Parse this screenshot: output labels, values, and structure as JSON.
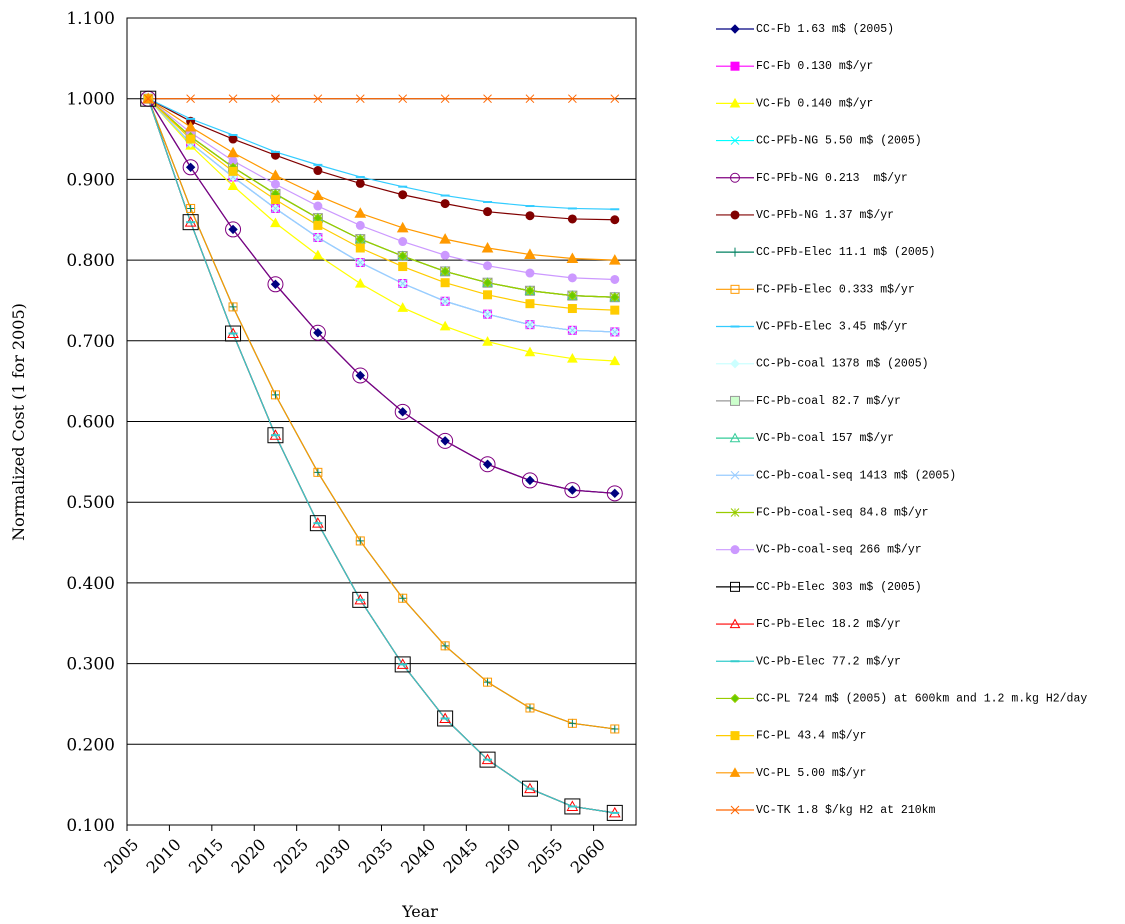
{
  "chart_data": {
    "type": "line",
    "x_label": "Year",
    "y_label": "Normalized Cost (1 for 2005)",
    "x": [
      2007.5,
      2012.5,
      2017.5,
      2022.5,
      2027.5,
      2032.5,
      2037.5,
      2042.5,
      2047.5,
      2052.5,
      2057.5,
      2062.5
    ],
    "xlim": [
      2005,
      2065
    ],
    "xticks": [
      2005,
      2010,
      2015,
      2020,
      2025,
      2030,
      2035,
      2040,
      2045,
      2050,
      2055,
      2060
    ],
    "ylim": [
      0.1,
      1.1
    ],
    "yticks": [
      {
        "value": 0.1,
        "label": "0.100"
      },
      {
        "value": 0.2,
        "label": "0.200"
      },
      {
        "value": 0.3,
        "label": "0.300"
      },
      {
        "value": 0.4,
        "label": "0.400"
      },
      {
        "value": 0.5,
        "label": "0.500"
      },
      {
        "value": 0.6,
        "label": "0.600"
      },
      {
        "value": 0.7,
        "label": "0.700"
      },
      {
        "value": 0.8,
        "label": "0.800"
      },
      {
        "value": 0.9,
        "label": "0.900"
      },
      {
        "value": 1.0,
        "label": "1.000"
      },
      {
        "value": 1.1,
        "label": "1.100"
      }
    ],
    "grid": true,
    "legend": "right",
    "series": [
      {
        "name": "CC-Fb 1.63 m$ (2005)",
        "color": "#000080",
        "marker": "diamond",
        "filled": true,
        "marker_size": 8,
        "values": [
          1.0,
          0.915,
          0.838,
          0.77,
          0.71,
          0.657,
          0.612,
          0.576,
          0.547,
          0.527,
          0.515,
          0.511
        ]
      },
      {
        "name": "FC-Fb 0.130 m$/yr",
        "color": "#ff00ff",
        "marker": "square",
        "filled": true,
        "marker_size": 8,
        "values": [
          1.0,
          0.945,
          0.903,
          0.864,
          0.828,
          0.797,
          0.771,
          0.749,
          0.733,
          0.72,
          0.713,
          0.711
        ]
      },
      {
        "name": "VC-Fb 0.140 m$/yr",
        "color": "#ffff00",
        "marker": "triangle",
        "filled": true,
        "marker_size": 9,
        "values": [
          1.0,
          0.942,
          0.892,
          0.846,
          0.806,
          0.771,
          0.741,
          0.718,
          0.699,
          0.686,
          0.678,
          0.675
        ]
      },
      {
        "name": "CC-PFb-NG 5.50 m$ (2005)",
        "color": "#00ffff",
        "marker": "x",
        "filled": false,
        "marker_size": 8,
        "values": [
          1.0,
          0.945,
          0.903,
          0.864,
          0.828,
          0.797,
          0.771,
          0.749,
          0.733,
          0.72,
          0.713,
          0.711
        ]
      },
      {
        "name": "FC-PFb-NG 0.213  m$/yr",
        "color": "#800080",
        "marker": "circle",
        "filled": false,
        "marker_size": 15,
        "values": [
          1.0,
          0.915,
          0.838,
          0.77,
          0.71,
          0.657,
          0.612,
          0.576,
          0.547,
          0.527,
          0.515,
          0.511
        ]
      },
      {
        "name": "VC-PFb-NG 1.37 m$/yr",
        "color": "#800000",
        "marker": "dot",
        "filled": true,
        "marker_size": 8,
        "values": [
          1.0,
          0.972,
          0.95,
          0.93,
          0.911,
          0.895,
          0.881,
          0.87,
          0.86,
          0.855,
          0.851,
          0.85
        ]
      },
      {
        "name": "CC-PFb-Elec 11.1 m$ (2005)",
        "color": "#008060",
        "marker": "plus",
        "filled": false,
        "marker_size": 9,
        "values": [
          1.0,
          0.864,
          0.742,
          0.633,
          0.537,
          0.452,
          0.381,
          0.322,
          0.277,
          0.245,
          0.226,
          0.219
        ]
      },
      {
        "name": "FC-PFb-Elec 0.333 m$/yr",
        "color": "#ff9900",
        "marker": "square",
        "filled": false,
        "marker_size": 8,
        "values": [
          1.0,
          0.864,
          0.742,
          0.633,
          0.537,
          0.452,
          0.381,
          0.322,
          0.277,
          0.245,
          0.226,
          0.219
        ]
      },
      {
        "name": "VC-PFb-Elec 3.45 m$/yr",
        "color": "#33ccff",
        "marker": "dash",
        "filled": false,
        "marker_size": 9,
        "values": [
          1.0,
          0.975,
          0.955,
          0.934,
          0.918,
          0.903,
          0.891,
          0.88,
          0.872,
          0.867,
          0.864,
          0.863
        ]
      },
      {
        "name": "CC-Pb-coal 1378 m$ (2005)",
        "color": "#ccffff",
        "marker": "diamond",
        "filled": true,
        "marker_size": 8,
        "values": [
          1.0,
          0.945,
          0.903,
          0.864,
          0.828,
          0.797,
          0.771,
          0.749,
          0.733,
          0.72,
          0.713,
          0.711
        ]
      },
      {
        "name": "FC-Pb-coal 82.7 m$/yr",
        "color": "#999999",
        "marker": "square",
        "filled": true,
        "fill": "#ccffcc",
        "marker_size": 9,
        "values": [
          1.0,
          0.953,
          0.915,
          0.882,
          0.852,
          0.826,
          0.805,
          0.786,
          0.772,
          0.762,
          0.756,
          0.754
        ]
      },
      {
        "name": "VC-Pb-coal 157 m$/yr",
        "color": "#33cc99",
        "marker": "triangle",
        "filled": false,
        "marker_size": 9,
        "values": [
          1.0,
          0.953,
          0.915,
          0.882,
          0.852,
          0.826,
          0.805,
          0.786,
          0.772,
          0.762,
          0.756,
          0.754
        ]
      },
      {
        "name": "CC-Pb-coal-seq 1413 m$ (2005)",
        "color": "#99ccff",
        "marker": "x",
        "filled": false,
        "marker_size": 8,
        "values": [
          1.0,
          0.945,
          0.903,
          0.864,
          0.828,
          0.797,
          0.771,
          0.749,
          0.733,
          0.72,
          0.713,
          0.711
        ]
      },
      {
        "name": "FC-Pb-coal-seq 84.8 m$/yr",
        "color": "#99cc00",
        "marker": "star",
        "filled": false,
        "marker_size": 8,
        "values": [
          1.0,
          0.953,
          0.915,
          0.882,
          0.852,
          0.826,
          0.805,
          0.786,
          0.772,
          0.762,
          0.756,
          0.754
        ]
      },
      {
        "name": "VC-Pb-coal-seq 266 m$/yr",
        "color": "#cc99ff",
        "marker": "dot",
        "filled": true,
        "marker_size": 8,
        "values": [
          1.0,
          0.958,
          0.923,
          0.894,
          0.867,
          0.843,
          0.823,
          0.806,
          0.793,
          0.784,
          0.778,
          0.776
        ]
      },
      {
        "name": "CC-Pb-Elec 303 m$ (2005)",
        "color": "#000000",
        "marker": "square",
        "filled": false,
        "marker_size": 15,
        "values": [
          1.0,
          0.847,
          0.709,
          0.583,
          0.474,
          0.379,
          0.299,
          0.232,
          0.181,
          0.145,
          0.123,
          0.115
        ]
      },
      {
        "name": "FC-Pb-Elec 18.2 m$/yr",
        "color": "#ff0000",
        "marker": "triangle",
        "filled": false,
        "marker_size": 10,
        "values": [
          1.0,
          0.847,
          0.709,
          0.583,
          0.474,
          0.379,
          0.299,
          0.232,
          0.181,
          0.145,
          0.123,
          0.115
        ]
      },
      {
        "name": "VC-Pb-Elec 77.2 m$/yr",
        "color": "#33cccc",
        "marker": "dash",
        "filled": false,
        "marker_size": 9,
        "values": [
          1.0,
          0.847,
          0.709,
          0.583,
          0.474,
          0.379,
          0.299,
          0.232,
          0.181,
          0.145,
          0.123,
          0.115
        ]
      },
      {
        "name": "CC-PL 724 m$ (2005) at 600km and 1.2 m.kg H2/day",
        "color": "#99cc00",
        "marker": "diamond",
        "filled": true,
        "fill": "#66cc00",
        "marker_size": 8,
        "values": [
          1.0,
          0.953,
          0.915,
          0.882,
          0.852,
          0.826,
          0.805,
          0.786,
          0.772,
          0.762,
          0.756,
          0.754
        ]
      },
      {
        "name": "FC-PL 43.4 m$/yr",
        "color": "#ffcc00",
        "marker": "square",
        "filled": true,
        "marker_size": 8,
        "values": [
          1.0,
          0.95,
          0.91,
          0.875,
          0.843,
          0.815,
          0.792,
          0.772,
          0.757,
          0.746,
          0.74,
          0.738
        ]
      },
      {
        "name": "VC-PL 5.00 m$/yr",
        "color": "#ff9900",
        "marker": "triangle",
        "filled": true,
        "marker_size": 10,
        "values": [
          1.0,
          0.965,
          0.933,
          0.905,
          0.88,
          0.858,
          0.84,
          0.826,
          0.815,
          0.807,
          0.802,
          0.8
        ]
      },
      {
        "name": "VC-TK 1.8 $/kg H2 at 210km",
        "color": "#ff6600",
        "marker": "x",
        "filled": false,
        "marker_size": 8,
        "values": [
          1.0,
          1.0,
          1.0,
          1.0,
          1.0,
          1.0,
          1.0,
          1.0,
          1.0,
          1.0,
          1.0,
          1.0
        ]
      }
    ]
  }
}
